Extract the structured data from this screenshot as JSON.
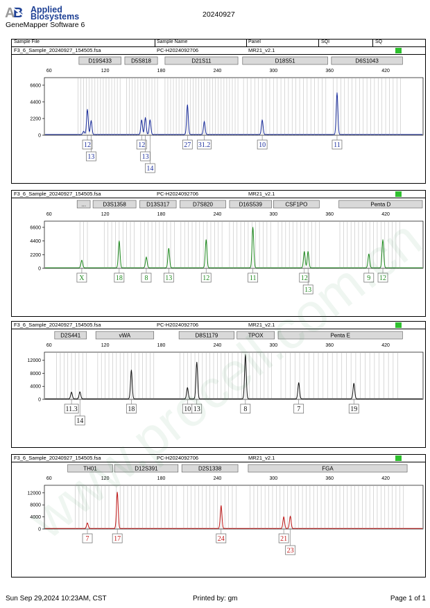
{
  "header": {
    "brand_line1": "Applied",
    "brand_line2": "Biosystems",
    "software": "GeneMapper Software 6",
    "date": "20240927"
  },
  "columns": {
    "sample_file": "Sample File",
    "sample_name": "Sample Name",
    "panel": "Panel",
    "sqi": "SQI",
    "sq": "SQ"
  },
  "footer": {
    "left": "Sun Sep 29,2024 10:23AM, CST",
    "center": "Printed by: gm",
    "right": "Page 1 of 1"
  },
  "watermark": "www.procell.com.cn",
  "colors": {
    "blue": "#1a2d9c",
    "green": "#1f8a1f",
    "black": "#111111",
    "red": "#c01616",
    "status": "#2ec02e"
  },
  "chart_data": [
    {
      "type": "line",
      "color_key": "blue",
      "sample_file": "F3_6_Sample_20240927_154505.fsa",
      "sample_name": "PC-H2024092706",
      "panel": "MR21_v2.1",
      "x_ticks": [
        60,
        120,
        180,
        240,
        300,
        360,
        420
      ],
      "y_ticks": [
        0,
        2200,
        4400,
        6600
      ],
      "xlim": [
        55,
        460
      ],
      "ylim": [
        0,
        7600
      ],
      "markers": [
        {
          "name": "D19S433",
          "start": 92,
          "end": 137
        },
        {
          "name": "D5S818",
          "start": 141,
          "end": 176
        },
        {
          "name": "D21S11",
          "start": 184,
          "end": 262
        },
        {
          "name": "D18S51",
          "start": 267,
          "end": 358
        },
        {
          "name": "D6S1043",
          "start": 362,
          "end": 438
        }
      ],
      "peaks": [
        {
          "x": 97,
          "y": 420
        },
        {
          "x": 101,
          "y": 3300
        },
        {
          "x": 105,
          "y": 1800
        },
        {
          "x": 159,
          "y": 1900
        },
        {
          "x": 163,
          "y": 2200
        },
        {
          "x": 168,
          "y": 1900
        },
        {
          "x": 208,
          "y": 3900
        },
        {
          "x": 226,
          "y": 1700
        },
        {
          "x": 288,
          "y": 1900
        },
        {
          "x": 368,
          "y": 5500
        }
      ],
      "allele_calls": [
        {
          "x": 101,
          "label": "12",
          "row": 0
        },
        {
          "x": 105,
          "label": "13",
          "row": 1
        },
        {
          "x": 159,
          "label": "12",
          "row": 0
        },
        {
          "x": 163,
          "label": "13",
          "row": 1
        },
        {
          "x": 168,
          "label": "14",
          "row": 2
        },
        {
          "x": 208,
          "label": "27",
          "row": 0
        },
        {
          "x": 226,
          "label": "31.2",
          "row": 0
        },
        {
          "x": 288,
          "label": "10",
          "row": 0
        },
        {
          "x": 368,
          "label": "11",
          "row": 0
        }
      ],
      "bins": [
        91,
        94,
        97,
        100,
        103,
        106,
        109,
        112,
        115,
        118,
        121,
        124,
        127,
        130,
        133,
        136,
        143,
        146,
        149,
        152,
        155,
        158,
        161,
        164,
        167,
        170,
        173,
        176,
        184,
        187,
        190,
        193,
        196,
        199,
        202,
        205,
        208,
        211,
        214,
        217,
        220,
        223,
        226,
        229,
        232,
        235,
        238,
        241,
        244,
        247,
        250,
        253,
        256,
        259,
        262,
        268,
        272,
        276,
        280,
        284,
        288,
        292,
        296,
        300,
        304,
        308,
        312,
        316,
        320,
        324,
        328,
        332,
        336,
        340,
        344,
        348,
        352,
        356,
        364,
        368,
        372,
        376,
        380,
        384,
        388,
        392,
        396,
        400,
        404,
        408,
        412,
        416,
        420,
        424,
        428,
        432,
        436
      ]
    },
    {
      "type": "line",
      "color_key": "green",
      "sample_file": "F3_6_Sample_20240927_154505.fsa",
      "sample_name": "PC-H2024092706",
      "panel": "MR21_v2.1",
      "x_ticks": [
        60,
        120,
        180,
        240,
        300,
        360,
        420
      ],
      "y_ticks": [
        0,
        2200,
        4400,
        6600
      ],
      "xlim": [
        55,
        460
      ],
      "ylim": [
        0,
        7600
      ],
      "markers": [
        {
          "name": "...",
          "start": 90,
          "end": 104
        },
        {
          "name": "D3S1358",
          "start": 107,
          "end": 153
        },
        {
          "name": "D13S317",
          "start": 157,
          "end": 196
        },
        {
          "name": "D7S820",
          "start": 200,
          "end": 249
        },
        {
          "name": "D16S539",
          "start": 253,
          "end": 298
        },
        {
          "name": "CSF1PO",
          "start": 300,
          "end": 349
        },
        {
          "name": "Penta D",
          "start": 370,
          "end": 465
        }
      ],
      "peaks": [
        {
          "x": 95,
          "y": 1200
        },
        {
          "x": 135,
          "y": 4300
        },
        {
          "x": 164,
          "y": 1700
        },
        {
          "x": 188,
          "y": 3100
        },
        {
          "x": 228,
          "y": 4500
        },
        {
          "x": 278,
          "y": 6500
        },
        {
          "x": 333,
          "y": 2600
        },
        {
          "x": 337,
          "y": 2600
        },
        {
          "x": 402,
          "y": 2200
        },
        {
          "x": 417,
          "y": 4500
        }
      ],
      "allele_calls": [
        {
          "x": 95,
          "label": "X",
          "row": 0
        },
        {
          "x": 135,
          "label": "18",
          "row": 0
        },
        {
          "x": 164,
          "label": "8",
          "row": 0
        },
        {
          "x": 188,
          "label": "13",
          "row": 0
        },
        {
          "x": 228,
          "label": "12",
          "row": 0
        },
        {
          "x": 278,
          "label": "11",
          "row": 0
        },
        {
          "x": 333,
          "label": "12",
          "row": 0
        },
        {
          "x": 337,
          "label": "13",
          "row": 1
        },
        {
          "x": 402,
          "label": "9",
          "row": 0
        },
        {
          "x": 417,
          "label": "12",
          "row": 0
        }
      ],
      "bins": [
        93,
        97,
        101,
        119,
        123,
        127,
        131,
        135,
        139,
        143,
        147,
        151,
        158,
        162,
        166,
        170,
        174,
        178,
        182,
        186,
        190,
        194,
        201,
        205,
        209,
        213,
        217,
        221,
        225,
        229,
        233,
        237,
        241,
        245,
        253,
        257,
        261,
        265,
        269,
        273,
        277,
        281,
        285,
        289,
        293,
        297,
        305,
        309,
        313,
        317,
        321,
        325,
        329,
        333,
        337,
        341,
        345,
        349,
        371,
        375,
        379,
        383,
        387,
        391,
        395,
        399,
        403,
        407,
        411,
        415,
        419,
        423,
        427,
        431,
        435
      ]
    },
    {
      "type": "line",
      "color_key": "black",
      "sample_file": "F3_6_Sample_20240927_154505.fsa",
      "sample_name": "PC-H2024092706",
      "panel": "MR21_v2.1",
      "x_ticks": [
        60,
        120,
        180,
        240,
        300,
        360,
        420
      ],
      "y_ticks": [
        0,
        4000,
        8000,
        12000
      ],
      "xlim": [
        55,
        460
      ],
      "ylim": [
        0,
        14500
      ],
      "markers": [
        {
          "name": "D2S441",
          "start": 66,
          "end": 100
        },
        {
          "name": "vWA",
          "start": 110,
          "end": 172
        },
        {
          "name": "D8S1179",
          "start": 199,
          "end": 258
        },
        {
          "name": "TPOX",
          "start": 261,
          "end": 301
        },
        {
          "name": "Penta E",
          "start": 305,
          "end": 438
        }
      ],
      "peaks": [
        {
          "x": 84,
          "y": 2000
        },
        {
          "x": 93,
          "y": 2100
        },
        {
          "x": 148,
          "y": 8800
        },
        {
          "x": 208,
          "y": 3400
        },
        {
          "x": 218,
          "y": 11200
        },
        {
          "x": 270,
          "y": 13500
        },
        {
          "x": 327,
          "y": 4900
        },
        {
          "x": 386,
          "y": 4700
        }
      ],
      "allele_calls": [
        {
          "x": 84,
          "label": "11.3",
          "row": 0
        },
        {
          "x": 93,
          "label": "14",
          "row": 1
        },
        {
          "x": 148,
          "label": "18",
          "row": 0
        },
        {
          "x": 208,
          "label": "10",
          "row": 0
        },
        {
          "x": 218,
          "label": "13",
          "row": 0
        },
        {
          "x": 270,
          "label": "8",
          "row": 0
        },
        {
          "x": 327,
          "label": "7",
          "row": 0
        },
        {
          "x": 386,
          "label": "19",
          "row": 0
        }
      ],
      "bins": [
        68,
        72,
        76,
        80,
        84,
        88,
        92,
        96,
        100,
        112,
        116,
        120,
        124,
        128,
        132,
        136,
        140,
        144,
        148,
        152,
        156,
        160,
        164,
        168,
        172,
        200,
        204,
        208,
        212,
        216,
        220,
        224,
        228,
        232,
        236,
        240,
        244,
        248,
        252,
        256,
        262,
        266,
        270,
        274,
        278,
        282,
        286,
        290,
        294,
        298,
        308,
        313,
        318,
        323,
        328,
        333,
        338,
        343,
        348,
        353,
        358,
        363,
        368,
        373,
        378,
        383,
        388,
        393,
        398,
        403,
        408,
        413,
        418,
        423,
        428,
        433
      ]
    },
    {
      "type": "line",
      "color_key": "red",
      "sample_file": "F3_6_Sample_20240927_154505.fsa",
      "sample_name": "PC-H2024092706",
      "panel": "MR21_v2.1",
      "x_ticks": [
        60,
        120,
        180,
        240,
        300,
        360,
        420
      ],
      "y_ticks": [
        0,
        4000,
        8000,
        12000
      ],
      "xlim": [
        55,
        460
      ],
      "ylim": [
        0,
        14500
      ],
      "markers": [
        {
          "name": "TH01",
          "start": 80,
          "end": 128
        },
        {
          "name": "D12S391",
          "start": 130,
          "end": 198
        },
        {
          "name": "D2S1338",
          "start": 202,
          "end": 262
        },
        {
          "name": "FGA",
          "start": 273,
          "end": 443
        }
      ],
      "peaks": [
        {
          "x": 101,
          "y": 1800
        },
        {
          "x": 133,
          "y": 12000
        },
        {
          "x": 244,
          "y": 7500
        },
        {
          "x": 311,
          "y": 3800
        },
        {
          "x": 318,
          "y": 4000
        }
      ],
      "allele_calls": [
        {
          "x": 101,
          "label": "7",
          "row": 0
        },
        {
          "x": 133,
          "label": "17",
          "row": 0
        },
        {
          "x": 244,
          "label": "24",
          "row": 0
        },
        {
          "x": 311,
          "label": "21",
          "row": 0
        },
        {
          "x": 318,
          "label": "23",
          "row": 1
        }
      ],
      "bins": [
        88,
        92,
        96,
        100,
        104,
        108,
        112,
        116,
        120,
        124,
        132,
        136,
        140,
        144,
        148,
        152,
        156,
        160,
        164,
        168,
        172,
        176,
        180,
        184,
        188,
        192,
        196,
        204,
        208,
        212,
        216,
        220,
        224,
        228,
        232,
        236,
        240,
        244,
        248,
        252,
        256,
        260,
        275,
        279,
        283,
        287,
        291,
        295,
        299,
        303,
        307,
        311,
        315,
        319,
        323,
        327,
        331,
        335,
        339,
        343,
        347,
        351,
        355,
        359,
        363,
        367,
        371,
        375,
        379,
        383,
        387,
        391,
        395,
        399,
        403,
        407,
        411,
        415,
        419,
        423,
        427,
        431,
        435,
        439
      ]
    }
  ]
}
